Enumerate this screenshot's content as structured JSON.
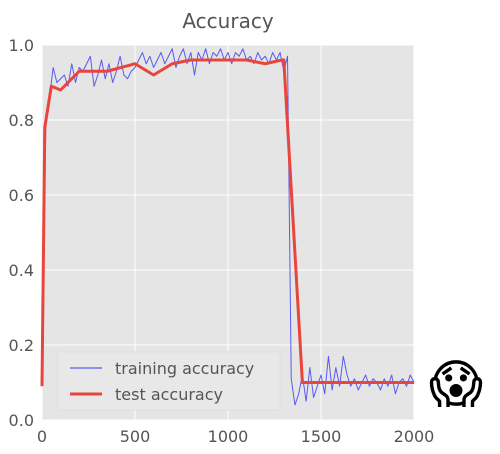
{
  "chart_data": {
    "type": "line",
    "title": "Accuracy",
    "xlabel": "",
    "ylabel": "",
    "xlim": [
      0,
      2000
    ],
    "ylim": [
      0,
      1.0
    ],
    "x_ticks": [
      0,
      500,
      1000,
      1500,
      2000
    ],
    "y_ticks": [
      0.0,
      0.2,
      0.4,
      0.6,
      0.8,
      1.0
    ],
    "x_tick_labels": [
      "0",
      "500",
      "1000",
      "1500",
      "2000"
    ],
    "y_tick_labels": [
      "0.0",
      "0.2",
      "0.4",
      "0.6",
      "0.8",
      "1.0"
    ],
    "grid": true,
    "legend_position": "bottom-left",
    "series": [
      {
        "name": "training accuracy",
        "color": "#5a5af0",
        "style": "thin",
        "points": [
          [
            0,
            0.1
          ],
          [
            20,
            0.78
          ],
          [
            40,
            0.86
          ],
          [
            60,
            0.94
          ],
          [
            80,
            0.9
          ],
          [
            100,
            0.91
          ],
          [
            120,
            0.92
          ],
          [
            140,
            0.89
          ],
          [
            160,
            0.95
          ],
          [
            180,
            0.9
          ],
          [
            200,
            0.94
          ],
          [
            220,
            0.93
          ],
          [
            240,
            0.95
          ],
          [
            260,
            0.97
          ],
          [
            280,
            0.89
          ],
          [
            300,
            0.92
          ],
          [
            320,
            0.96
          ],
          [
            340,
            0.91
          ],
          [
            360,
            0.95
          ],
          [
            380,
            0.9
          ],
          [
            400,
            0.93
          ],
          [
            420,
            0.97
          ],
          [
            440,
            0.92
          ],
          [
            460,
            0.91
          ],
          [
            480,
            0.93
          ],
          [
            500,
            0.94
          ],
          [
            520,
            0.96
          ],
          [
            540,
            0.98
          ],
          [
            560,
            0.95
          ],
          [
            580,
            0.97
          ],
          [
            600,
            0.94
          ],
          [
            620,
            0.96
          ],
          [
            640,
            0.98
          ],
          [
            660,
            0.95
          ],
          [
            680,
            0.97
          ],
          [
            700,
            0.99
          ],
          [
            720,
            0.94
          ],
          [
            740,
            0.97
          ],
          [
            760,
            0.99
          ],
          [
            780,
            0.95
          ],
          [
            800,
            0.98
          ],
          [
            820,
            0.92
          ],
          [
            840,
            0.98
          ],
          [
            860,
            0.96
          ],
          [
            880,
            0.99
          ],
          [
            900,
            0.95
          ],
          [
            920,
            0.98
          ],
          [
            940,
            0.97
          ],
          [
            960,
            0.99
          ],
          [
            980,
            0.96
          ],
          [
            1000,
            0.98
          ],
          [
            1020,
            0.95
          ],
          [
            1040,
            0.98
          ],
          [
            1060,
            0.97
          ],
          [
            1080,
            0.99
          ],
          [
            1100,
            0.96
          ],
          [
            1120,
            0.97
          ],
          [
            1140,
            0.95
          ],
          [
            1160,
            0.98
          ],
          [
            1180,
            0.96
          ],
          [
            1200,
            0.97
          ],
          [
            1220,
            0.95
          ],
          [
            1240,
            0.98
          ],
          [
            1260,
            0.96
          ],
          [
            1280,
            0.98
          ],
          [
            1300,
            0.93
          ],
          [
            1320,
            0.97
          ],
          [
            1340,
            0.11
          ],
          [
            1360,
            0.04
          ],
          [
            1380,
            0.07
          ],
          [
            1400,
            0.12
          ],
          [
            1420,
            0.05
          ],
          [
            1440,
            0.14
          ],
          [
            1460,
            0.06
          ],
          [
            1480,
            0.09
          ],
          [
            1500,
            0.12
          ],
          [
            1520,
            0.07
          ],
          [
            1540,
            0.17
          ],
          [
            1560,
            0.08
          ],
          [
            1580,
            0.14
          ],
          [
            1600,
            0.09
          ],
          [
            1620,
            0.17
          ],
          [
            1640,
            0.12
          ],
          [
            1660,
            0.09
          ],
          [
            1680,
            0.11
          ],
          [
            1700,
            0.08
          ],
          [
            1720,
            0.1
          ],
          [
            1740,
            0.12
          ],
          [
            1760,
            0.09
          ],
          [
            1780,
            0.11
          ],
          [
            1800,
            0.1
          ],
          [
            1820,
            0.08
          ],
          [
            1840,
            0.11
          ],
          [
            1860,
            0.09
          ],
          [
            1880,
            0.12
          ],
          [
            1900,
            0.07
          ],
          [
            1920,
            0.1
          ],
          [
            1940,
            0.11
          ],
          [
            1960,
            0.09
          ],
          [
            1980,
            0.12
          ],
          [
            2000,
            0.1
          ]
        ]
      },
      {
        "name": "test accuracy",
        "color": "#e8453c",
        "style": "thick",
        "points": [
          [
            0,
            0.09
          ],
          [
            15,
            0.78
          ],
          [
            50,
            0.89
          ],
          [
            100,
            0.88
          ],
          [
            200,
            0.93
          ],
          [
            350,
            0.93
          ],
          [
            500,
            0.95
          ],
          [
            600,
            0.92
          ],
          [
            700,
            0.95
          ],
          [
            800,
            0.96
          ],
          [
            900,
            0.96
          ],
          [
            1000,
            0.96
          ],
          [
            1100,
            0.96
          ],
          [
            1200,
            0.95
          ],
          [
            1290,
            0.96
          ],
          [
            1300,
            0.96
          ],
          [
            1400,
            0.1
          ],
          [
            1500,
            0.1
          ],
          [
            1600,
            0.1
          ],
          [
            1700,
            0.1
          ],
          [
            1800,
            0.1
          ],
          [
            1900,
            0.1
          ],
          [
            2000,
            0.1
          ]
        ]
      }
    ]
  },
  "emoji": {
    "icon": "screaming-face-icon",
    "glyph": "😱"
  }
}
